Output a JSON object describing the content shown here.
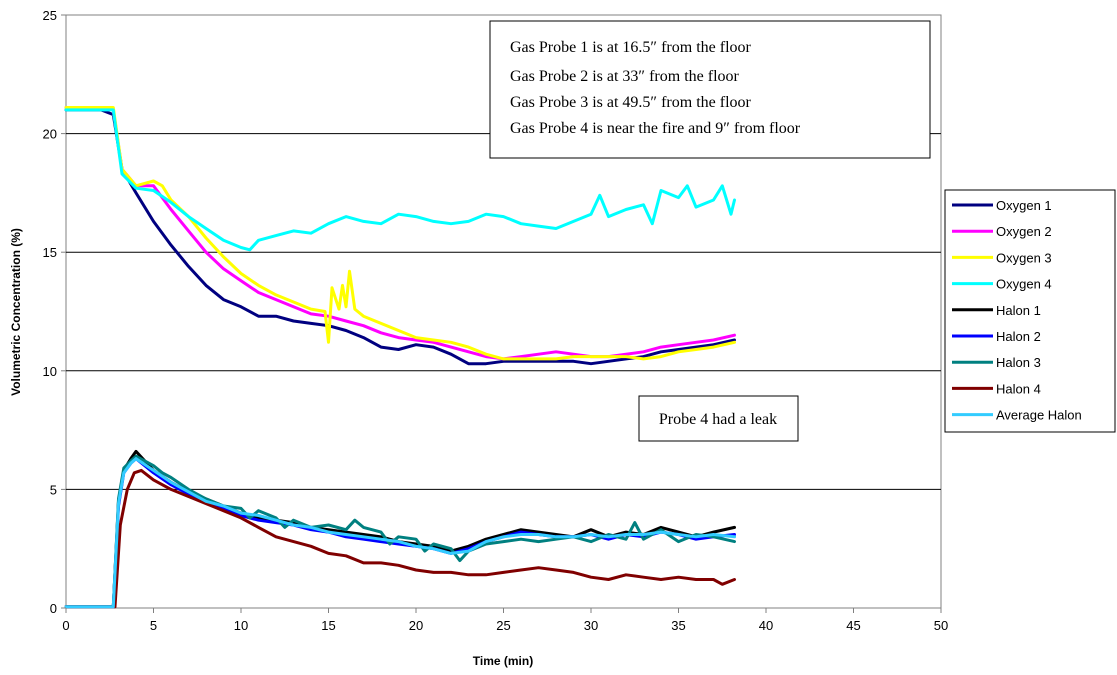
{
  "chart_data": {
    "type": "line",
    "title": "",
    "xlabel": "Time (min)",
    "ylabel": "Volumetric Concentration (%)",
    "xlim": [
      0,
      50
    ],
    "ylim": [
      0,
      25
    ],
    "x_ticks": [
      0,
      5,
      10,
      15,
      20,
      25,
      30,
      35,
      40,
      45,
      50
    ],
    "y_ticks": [
      0,
      5,
      10,
      15,
      20,
      25
    ],
    "grid": "horizontal",
    "legend_position": "right",
    "annotations": [
      "Gas Probe 1 is at 16.5″ from the floor",
      "Gas Probe 2 is at 33″ from the floor",
      "Gas Probe 3 is at 49.5″ from the floor",
      "Gas Probe 4 is near the fire and 9″ from floor",
      "Probe 4 had a leak"
    ],
    "series": [
      {
        "name": "Oxygen 1",
        "color": "#000080",
        "x": [
          0,
          2,
          2.7,
          3.2,
          4,
          5,
          6,
          7,
          8,
          9,
          10,
          11,
          12,
          13,
          14,
          15,
          16,
          17,
          18,
          19,
          20,
          21,
          22,
          23,
          24,
          25,
          26,
          27,
          28,
          29,
          30,
          31,
          32,
          33,
          34,
          35,
          36,
          37,
          38.2
        ],
        "y": [
          21.0,
          21.0,
          20.8,
          18.5,
          17.5,
          16.3,
          15.3,
          14.4,
          13.6,
          13.0,
          12.7,
          12.3,
          12.3,
          12.1,
          12.0,
          11.9,
          11.7,
          11.4,
          11.0,
          10.9,
          11.1,
          11.0,
          10.7,
          10.3,
          10.3,
          10.4,
          10.4,
          10.4,
          10.4,
          10.4,
          10.3,
          10.4,
          10.5,
          10.6,
          10.8,
          10.9,
          11.0,
          11.1,
          11.3
        ]
      },
      {
        "name": "Oxygen 2",
        "color": "#ff00ff",
        "x": [
          0,
          2,
          2.7,
          3.2,
          4,
          5,
          6,
          7,
          8,
          9,
          10,
          11,
          12,
          13,
          14,
          15,
          16,
          17,
          18,
          19,
          20,
          21,
          22,
          23,
          24,
          25,
          26,
          27,
          28,
          29,
          30,
          31,
          32,
          33,
          34,
          35,
          36,
          37,
          38.2
        ],
        "y": [
          21.1,
          21.1,
          21.0,
          18.5,
          17.8,
          17.8,
          16.8,
          15.9,
          15.0,
          14.3,
          13.8,
          13.3,
          13.0,
          12.7,
          12.4,
          12.3,
          12.1,
          11.9,
          11.6,
          11.4,
          11.3,
          11.2,
          11.0,
          10.8,
          10.6,
          10.5,
          10.6,
          10.7,
          10.8,
          10.7,
          10.6,
          10.6,
          10.7,
          10.8,
          11.0,
          11.1,
          11.2,
          11.3,
          11.5
        ]
      },
      {
        "name": "Oxygen 3",
        "color": "#ffff00",
        "x": [
          0,
          2,
          2.7,
          3.2,
          4,
          5,
          5.5,
          6,
          7,
          8,
          9,
          10,
          11,
          12,
          13,
          14,
          14.8,
          15,
          15.2,
          15.6,
          15.8,
          16,
          16.2,
          16.5,
          17,
          18,
          19,
          20,
          21,
          22,
          23,
          24,
          25,
          26,
          27,
          28,
          29,
          30,
          31,
          32,
          33,
          34,
          35,
          36,
          37,
          38.2
        ],
        "y": [
          21.1,
          21.1,
          21.1,
          18.5,
          17.8,
          18.0,
          17.8,
          17.2,
          16.5,
          15.6,
          14.8,
          14.1,
          13.6,
          13.2,
          12.9,
          12.6,
          12.5,
          11.2,
          13.5,
          12.6,
          13.6,
          12.7,
          14.2,
          12.6,
          12.3,
          12.0,
          11.7,
          11.4,
          11.3,
          11.2,
          11.0,
          10.7,
          10.5,
          10.5,
          10.5,
          10.5,
          10.6,
          10.6,
          10.6,
          10.6,
          10.5,
          10.6,
          10.8,
          10.9,
          11.0,
          11.2
        ]
      },
      {
        "name": "Oxygen 4",
        "color": "#00ffff",
        "x": [
          0,
          2,
          2.7,
          3.2,
          4,
          5,
          6,
          7,
          8,
          9,
          10,
          10.5,
          11,
          12,
          13,
          14,
          15,
          16,
          17,
          18,
          19,
          20,
          21,
          22,
          23,
          24,
          25,
          26,
          27,
          28,
          29,
          30,
          30.5,
          31,
          32,
          33,
          33.5,
          34,
          35,
          35.5,
          36,
          37,
          37.5,
          38,
          38.2
        ],
        "y": [
          21.0,
          21.0,
          21.0,
          18.3,
          17.7,
          17.6,
          17.1,
          16.5,
          16.0,
          15.5,
          15.2,
          15.1,
          15.5,
          15.7,
          15.9,
          15.8,
          16.2,
          16.5,
          16.3,
          16.2,
          16.6,
          16.5,
          16.3,
          16.2,
          16.3,
          16.6,
          16.5,
          16.2,
          16.1,
          16.0,
          16.3,
          16.6,
          17.4,
          16.5,
          16.8,
          17.0,
          16.2,
          17.6,
          17.3,
          17.8,
          16.9,
          17.2,
          17.8,
          16.6,
          17.2
        ]
      },
      {
        "name": "Halon 1",
        "color": "#000000",
        "x": [
          0,
          2.7,
          3.0,
          3.3,
          3.7,
          4.0,
          5,
          6,
          7,
          8,
          9,
          10,
          11,
          12,
          13,
          14,
          15,
          16,
          17,
          18,
          19,
          20,
          21,
          22,
          23,
          24,
          25,
          26,
          27,
          28,
          29,
          30,
          31,
          32,
          33,
          34,
          35,
          36,
          37,
          38.2
        ],
        "y": [
          0.05,
          0.05,
          4.5,
          5.8,
          6.3,
          6.6,
          5.8,
          5.3,
          4.9,
          4.6,
          4.3,
          4.0,
          3.8,
          3.7,
          3.6,
          3.4,
          3.3,
          3.2,
          3.1,
          3.0,
          2.8,
          2.7,
          2.6,
          2.4,
          2.6,
          2.9,
          3.1,
          3.3,
          3.2,
          3.1,
          3.0,
          3.3,
          3.0,
          3.2,
          3.1,
          3.4,
          3.2,
          3.0,
          3.2,
          3.4
        ]
      },
      {
        "name": "Halon 2",
        "color": "#0000ff",
        "x": [
          0,
          2.7,
          3.0,
          3.3,
          3.7,
          4.0,
          5,
          6,
          7,
          8,
          9,
          10,
          11,
          12,
          13,
          14,
          15,
          16,
          17,
          18,
          19,
          20,
          21,
          22,
          23,
          24,
          25,
          26,
          27,
          28,
          29,
          30,
          31,
          32,
          33,
          34,
          35,
          36,
          37,
          38.2
        ],
        "y": [
          0.05,
          0.05,
          4.3,
          5.7,
          6.1,
          6.3,
          5.7,
          5.2,
          4.8,
          4.5,
          4.2,
          3.9,
          3.7,
          3.6,
          3.5,
          3.3,
          3.2,
          3.0,
          2.9,
          2.8,
          2.7,
          2.6,
          2.5,
          2.3,
          2.5,
          2.8,
          3.0,
          3.2,
          3.1,
          3.0,
          3.0,
          3.1,
          2.9,
          3.1,
          3.0,
          3.2,
          3.1,
          2.9,
          3.0,
          3.1
        ]
      },
      {
        "name": "Halon 3",
        "color": "#008080",
        "x": [
          0,
          2.7,
          3.0,
          3.3,
          3.7,
          4.0,
          5,
          5.5,
          6,
          7,
          8,
          9,
          10,
          10.5,
          11,
          12,
          12.5,
          13,
          14,
          15,
          16,
          16.5,
          17,
          18,
          18.5,
          19,
          20,
          20.5,
          21,
          22,
          22.5,
          23,
          24,
          25,
          26,
          27,
          28,
          29,
          30,
          31,
          32,
          32.5,
          33,
          34,
          35,
          36,
          37,
          38.2
        ],
        "y": [
          0.05,
          0.05,
          4.6,
          5.9,
          6.2,
          6.4,
          6.0,
          5.7,
          5.5,
          5.0,
          4.6,
          4.3,
          4.2,
          3.8,
          4.1,
          3.8,
          3.4,
          3.7,
          3.4,
          3.5,
          3.3,
          3.7,
          3.4,
          3.2,
          2.7,
          3.0,
          2.9,
          2.4,
          2.7,
          2.5,
          2.0,
          2.4,
          2.7,
          2.8,
          2.9,
          2.8,
          2.9,
          3.0,
          2.8,
          3.1,
          2.9,
          3.6,
          2.9,
          3.3,
          2.8,
          3.1,
          3.0,
          2.8
        ]
      },
      {
        "name": "Halon 4",
        "color": "#800000",
        "x": [
          0,
          2.8,
          3.1,
          3.5,
          3.9,
          4.3,
          5,
          6,
          7,
          8,
          9,
          10,
          11,
          12,
          13,
          14,
          15,
          16,
          17,
          18,
          19,
          20,
          21,
          22,
          23,
          24,
          25,
          26,
          27,
          28,
          29,
          30,
          31,
          32,
          33,
          34,
          35,
          36,
          37,
          37.5,
          38.2
        ],
        "y": [
          0.05,
          0.05,
          3.5,
          5.0,
          5.7,
          5.8,
          5.4,
          5.0,
          4.7,
          4.4,
          4.1,
          3.8,
          3.4,
          3.0,
          2.8,
          2.6,
          2.3,
          2.2,
          1.9,
          1.9,
          1.8,
          1.6,
          1.5,
          1.5,
          1.4,
          1.4,
          1.5,
          1.6,
          1.7,
          1.6,
          1.5,
          1.3,
          1.2,
          1.4,
          1.3,
          1.2,
          1.3,
          1.2,
          1.2,
          1.0,
          1.2
        ]
      },
      {
        "name": "Average Halon",
        "color": "#33ccff",
        "x": [
          0,
          2.7,
          3.0,
          3.3,
          3.7,
          4.0,
          5,
          6,
          7,
          8,
          9,
          10,
          11,
          12,
          13,
          14,
          15,
          16,
          17,
          18,
          19,
          20,
          21,
          22,
          23,
          24,
          25,
          26,
          27,
          28,
          29,
          30,
          31,
          32,
          33,
          34,
          35,
          36,
          37,
          38.2
        ],
        "y": [
          0.05,
          0.05,
          4.4,
          5.7,
          6.1,
          6.3,
          5.8,
          5.3,
          4.9,
          4.5,
          4.3,
          4.0,
          3.9,
          3.7,
          3.5,
          3.4,
          3.2,
          3.1,
          3.0,
          2.9,
          2.8,
          2.6,
          2.5,
          2.3,
          2.4,
          2.8,
          3.0,
          3.1,
          3.1,
          3.0,
          3.0,
          3.1,
          3.0,
          3.1,
          3.1,
          3.2,
          3.1,
          3.0,
          3.1,
          3.0
        ]
      }
    ]
  }
}
